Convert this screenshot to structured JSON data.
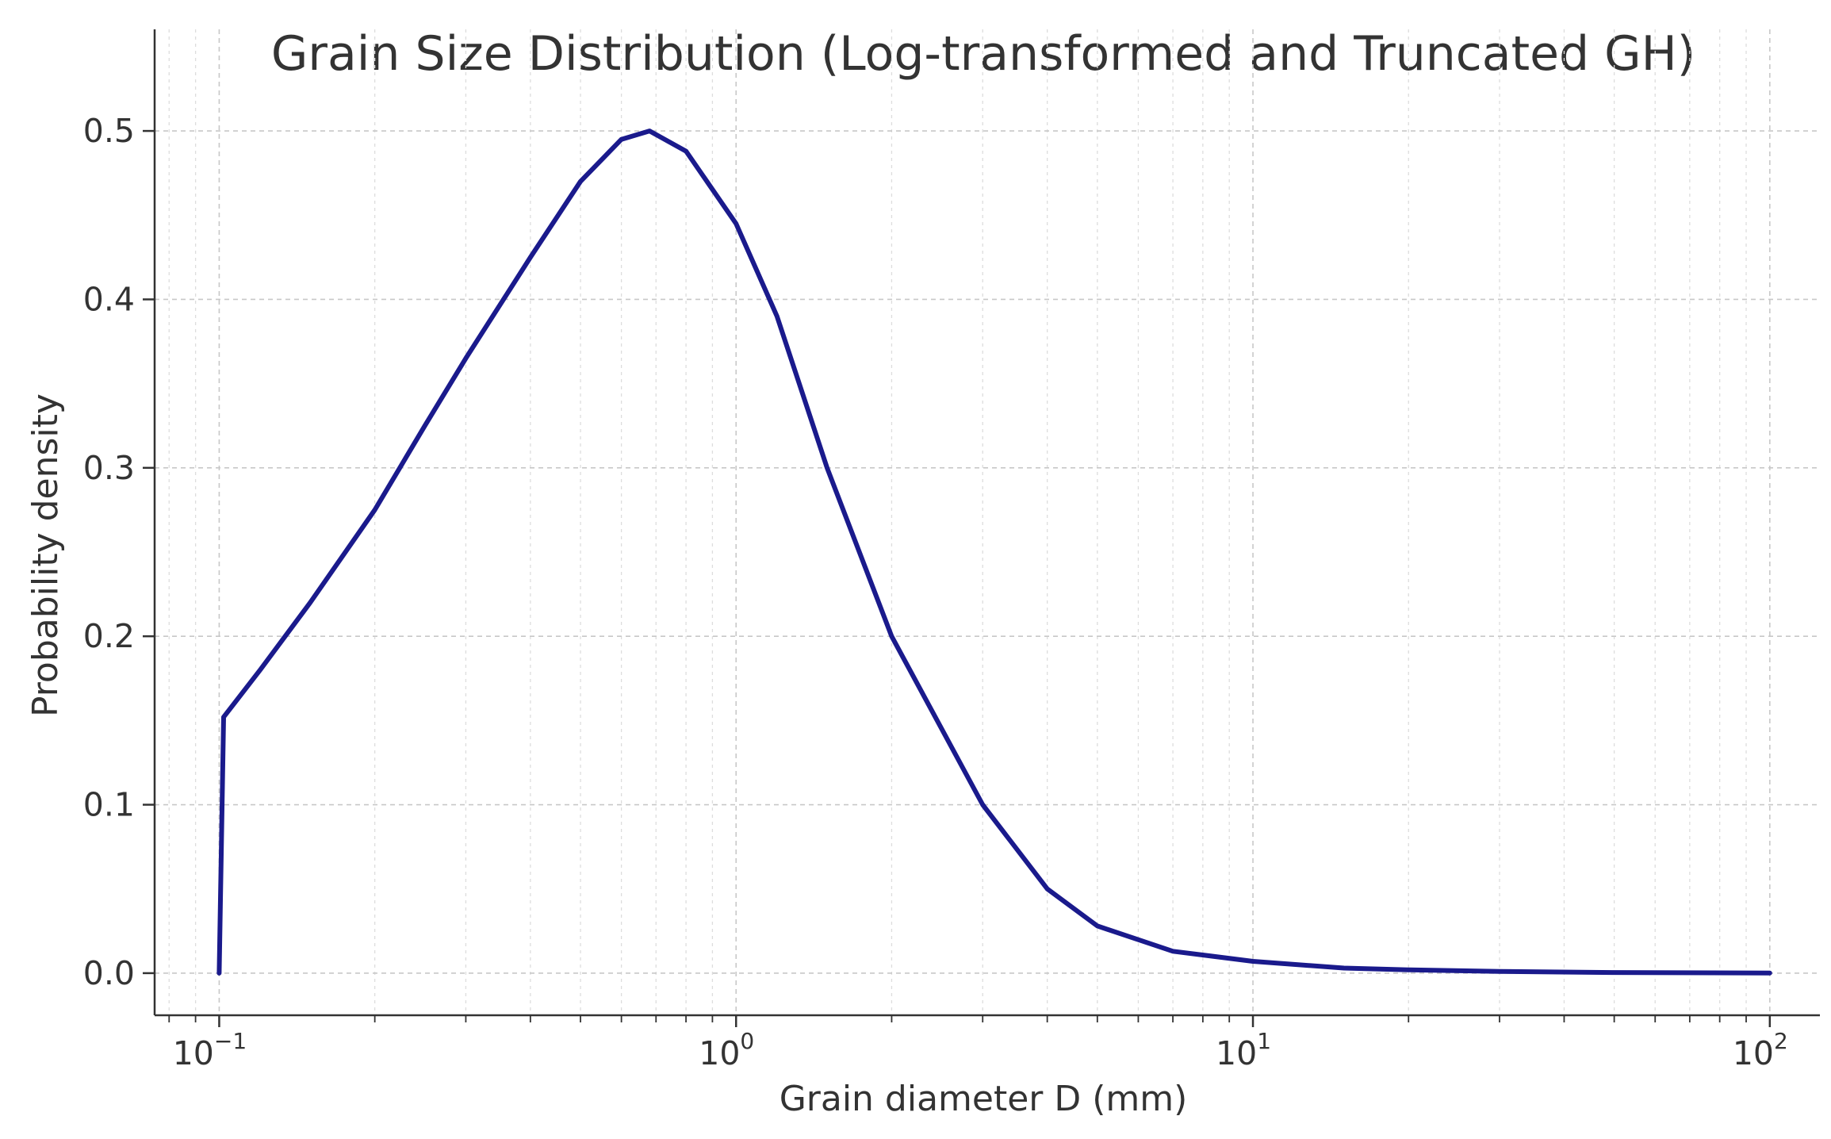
{
  "chart_data": {
    "type": "line",
    "title": "Grain Size Distribution (Log-transformed and Truncated GH)",
    "xlabel": "Grain diameter D (mm)",
    "ylabel": "Probability density",
    "x_scale": "log",
    "xlim": [
      0.075,
      125
    ],
    "ylim": [
      -0.025,
      0.525
    ],
    "x_ticks": [
      {
        "value": 0.1,
        "base": "10",
        "exp": "−1"
      },
      {
        "value": 1,
        "base": "10",
        "exp": "0"
      },
      {
        "value": 10,
        "base": "10",
        "exp": "1"
      },
      {
        "value": 100,
        "base": "10",
        "exp": "2"
      }
    ],
    "y_ticks": [
      {
        "value": 0.0,
        "label": "0.0"
      },
      {
        "value": 0.1,
        "label": "0.1"
      },
      {
        "value": 0.2,
        "label": "0.2"
      },
      {
        "value": 0.3,
        "label": "0.3"
      },
      {
        "value": 0.4,
        "label": "0.4"
      },
      {
        "value": 0.5,
        "label": "0.5"
      }
    ],
    "grid": true,
    "line_color": "#1a1a8c",
    "series": [
      {
        "x": [
          0.1,
          0.102,
          0.12,
          0.15,
          0.2,
          0.25,
          0.3,
          0.4,
          0.5,
          0.6,
          0.68,
          0.8,
          1.0,
          1.2,
          1.5,
          2.0,
          3.0,
          4.0,
          5.0,
          7.0,
          10.0,
          15.0,
          20.0,
          30.0,
          50.0,
          100.0
        ],
        "y": [
          0.0,
          0.152,
          0.18,
          0.22,
          0.275,
          0.325,
          0.365,
          0.425,
          0.47,
          0.495,
          0.5,
          0.488,
          0.445,
          0.39,
          0.3,
          0.2,
          0.1,
          0.05,
          0.028,
          0.013,
          0.007,
          0.003,
          0.002,
          0.001,
          0.0004,
          0.0001
        ]
      }
    ]
  }
}
